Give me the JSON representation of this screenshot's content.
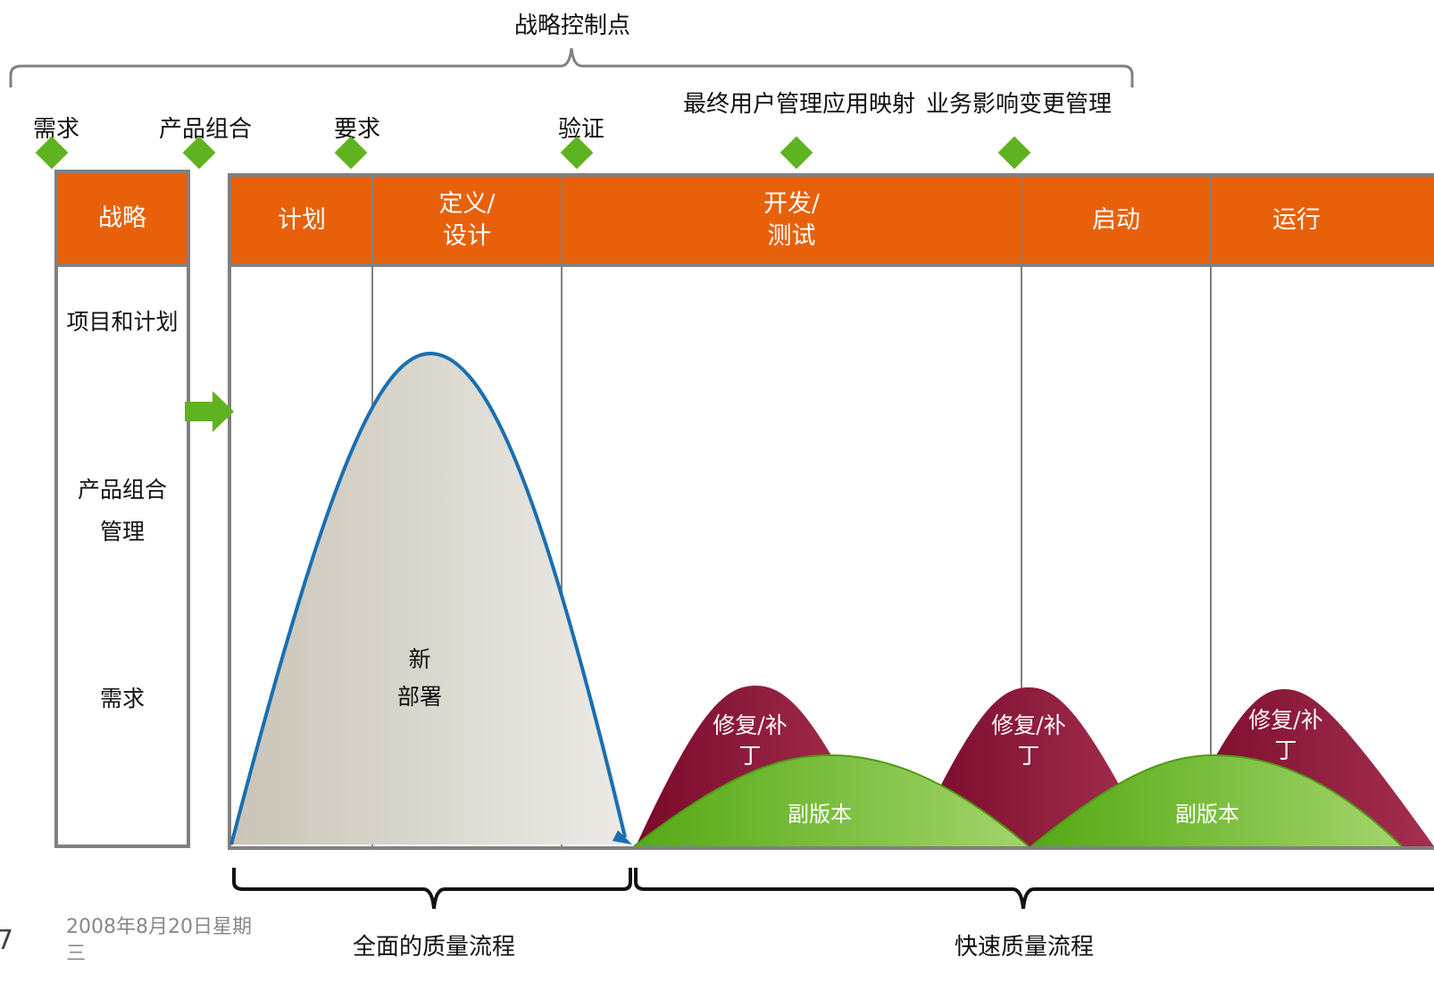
{
  "strategic_control_points": "战略控制点",
  "milestones": [
    {
      "label": "需求"
    },
    {
      "label": "产品组合"
    },
    {
      "label": "要求"
    },
    {
      "label": "验证"
    },
    {
      "label": "最终用户管理应用映射"
    },
    {
      "label": "业务影响变更管理"
    }
  ],
  "strategy_panel": {
    "header": "战略",
    "items": [
      "项目和计划",
      "产品组合",
      "管理",
      "需求"
    ]
  },
  "phases": [
    {
      "line1": "计划",
      "line2": ""
    },
    {
      "line1": "定义/",
      "line2": "设计"
    },
    {
      "line1": "开发/",
      "line2": "测试"
    },
    {
      "line1": "启动",
      "line2": ""
    },
    {
      "line1": "运行",
      "line2": ""
    }
  ],
  "shapes": {
    "new_deployment": {
      "line1": "新",
      "line2": "部署"
    },
    "patches": [
      {
        "line1": "修复/补",
        "line2": "丁"
      },
      {
        "line1": "修复/补",
        "line2": "丁"
      },
      {
        "line1": "修复/补",
        "line2": "丁"
      }
    ],
    "minor_versions": [
      "副版本",
      "副版本"
    ]
  },
  "processes": {
    "full": "全面的质量流程",
    "fast": "快速质量流程"
  },
  "footer": {
    "date_line1": "2008年8月20日星期",
    "date_line2": "三",
    "page_number": "7"
  },
  "colors": {
    "orange": "#e8610a",
    "green": "#5fb320",
    "maroon": "#8b1538",
    "blue": "#1a6fb0",
    "gray_border": "#808080"
  }
}
